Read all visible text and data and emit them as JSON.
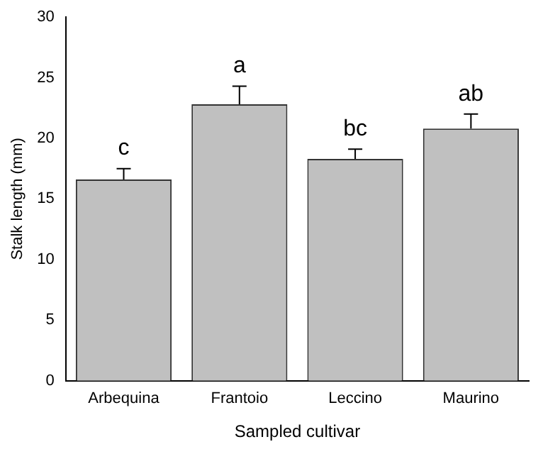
{
  "chart_data": {
    "type": "bar",
    "xlabel": "Sampled cultivar",
    "ylabel": "Stalk length (mm)",
    "categories": [
      "Arbequina",
      "Frantoio",
      "Leccino",
      "Maurino"
    ],
    "values": [
      16.6,
      22.8,
      18.3,
      20.8
    ],
    "errors": [
      [
        16.6,
        17.5
      ],
      [
        22.8,
        24.3
      ],
      [
        18.3,
        19.1
      ],
      [
        20.8,
        22.0
      ]
    ],
    "color": "#c0c0c0",
    "ylim": [
      0,
      30
    ],
    "yticks": [
      0,
      5,
      10,
      15,
      20,
      25,
      30
    ],
    "grid": false,
    "legend": false,
    "annotations": [
      {
        "text": "c",
        "x": "Arbequina",
        "y": 17.5
      },
      {
        "text": "a",
        "x": "Frantoio",
        "y": 24.3
      },
      {
        "text": "bc",
        "x": "Leccino",
        "y": 19.1
      },
      {
        "text": "ab",
        "x": "Maurino",
        "y": 22.0
      }
    ]
  }
}
